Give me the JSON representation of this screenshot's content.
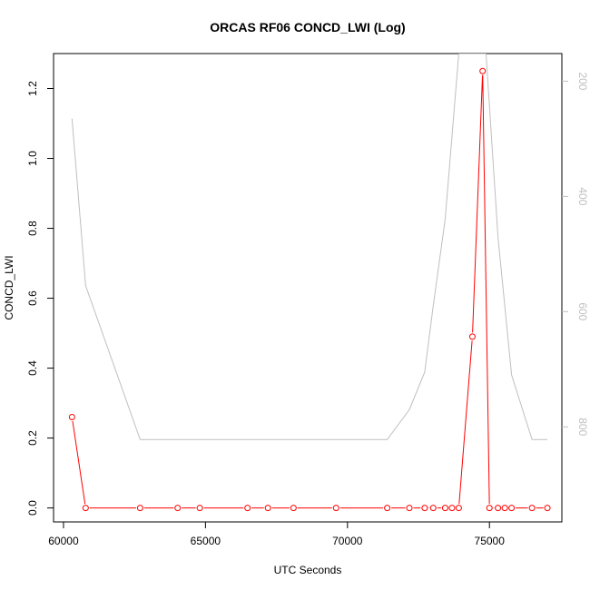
{
  "chart_data": {
    "type": "line",
    "title": "ORCAS RF06 CONCD_LWI (Log)",
    "xlabel": "UTC Seconds",
    "ylabel": "CONCD_LWI",
    "xlim": [
      59650,
      77550
    ],
    "ylim": [
      -0.04,
      1.3
    ],
    "y2lim": [
      965,
      152
    ],
    "x_ticks": [
      60000,
      65000,
      70000,
      75000
    ],
    "y_ticks": [
      0.0,
      0.2,
      0.4,
      0.6,
      0.8,
      1.0,
      1.2
    ],
    "y_tick_labels": [
      "0.0",
      "0.2",
      "0.4",
      "0.6",
      "0.8",
      "1.0",
      "1.2"
    ],
    "y2_ticks": [
      200,
      400,
      600,
      800
    ],
    "grid": false,
    "series": [
      {
        "color": "#ff0000",
        "marker": "open-circle",
        "x": [
          60300,
          60780,
          62700,
          64020,
          64800,
          66480,
          67200,
          68100,
          69600,
          71400,
          72180,
          72720,
          73020,
          73440,
          73680,
          73920,
          74400,
          74760,
          75000,
          75300,
          75540,
          75780,
          76500,
          77040
        ],
        "y": [
          0.26,
          0.0,
          0.0,
          0.0,
          0.0,
          0.0,
          0.0,
          0.0,
          0.0,
          0.0,
          0.0,
          0.0,
          0.0,
          0.0,
          0.0,
          0.0,
          0.49,
          1.25,
          0.0,
          0.0,
          0.0,
          0.0,
          0.0,
          0.0
        ],
        "axis": "left"
      },
      {
        "color": "#bfbfbf",
        "marker": "none",
        "x": [
          60300,
          60780,
          62700,
          71400,
          72180,
          72720,
          73020,
          73440,
          73920,
          74880,
          75300,
          75780,
          76500,
          77040
        ],
        "y": [
          265,
          555,
          822,
          822,
          770,
          705,
          590,
          440,
          152,
          152,
          470,
          710,
          822,
          822
        ],
        "axis": "right"
      }
    ]
  }
}
